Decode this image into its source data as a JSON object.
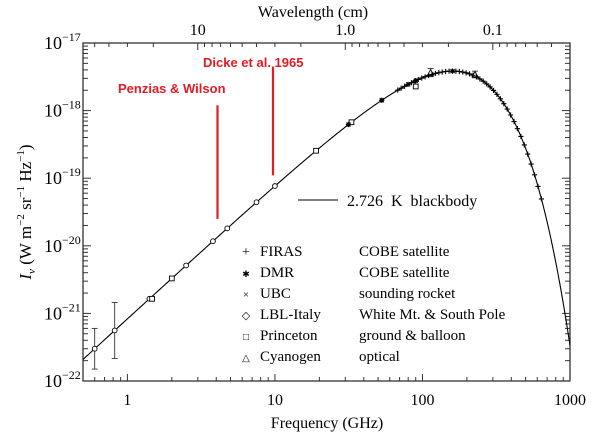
{
  "chart_data": {
    "type": "scatter",
    "title": "",
    "xlabel": "Frequency (GHz)",
    "ylabel_main": "I",
    "ylabel_sub": "ν",
    "ylabel_units": "(W m",
    "ylabel_full": "I_ν (W m^-2 sr^-1 Hz^-1)",
    "top_axis_label": "Wavelength (cm)",
    "xscale": "log",
    "yscale": "log",
    "xlim": [
      0.5,
      1000
    ],
    "ylim": [
      1e-22,
      1e-17
    ],
    "x_ticks": [
      {
        "value": 1,
        "label": "1"
      },
      {
        "value": 10,
        "label": "10"
      },
      {
        "value": 100,
        "label": "100"
      },
      {
        "value": 1000,
        "label": "1000"
      }
    ],
    "y_ticks": [
      {
        "value": 1e-17,
        "base": "10",
        "exp": "−17"
      },
      {
        "value": 1e-18,
        "base": "10",
        "exp": "−18"
      },
      {
        "value": 1e-19,
        "base": "10",
        "exp": "−19"
      },
      {
        "value": 1e-20,
        "base": "10",
        "exp": "−20"
      },
      {
        "value": 1e-21,
        "base": "10",
        "exp": "−21"
      },
      {
        "value": 1e-22,
        "base": "10",
        "exp": "−22"
      }
    ],
    "top_ticks": [
      {
        "wavelength_cm": 10,
        "label": "10"
      },
      {
        "wavelength_cm": 1.0,
        "label": "1.0"
      },
      {
        "wavelength_cm": 0.1,
        "label": "0.1"
      }
    ],
    "model_curve": {
      "name": "2.726 K blackbody",
      "temperature_K": 2.726,
      "legend_label": "2.726  K  blackbody"
    },
    "annotations": [
      {
        "text": "Penzias & Wilson",
        "frequency_GHz": 4.08,
        "y_top": 1.2e-18,
        "y_bottom": 2.5e-20,
        "color": "#e31b23"
      },
      {
        "text": "Dicke et al. 1965",
        "frequency_GHz": 9.7,
        "y_top": 4.5e-18,
        "y_bottom": 1.1e-19,
        "color": "#e31b23"
      }
    ],
    "legend": [
      {
        "marker": "plus",
        "symbol": "+",
        "instrument": "FIRAS",
        "description": "COBE satellite"
      },
      {
        "marker": "asterisk",
        "symbol": "✱",
        "instrument": "DMR",
        "description": "COBE satellite"
      },
      {
        "marker": "cross",
        "symbol": "×",
        "instrument": "UBC",
        "description": "sounding rocket"
      },
      {
        "marker": "diamond",
        "symbol": "◇",
        "instrument": "LBL-Italy",
        "description": "White Mt. & South Pole"
      },
      {
        "marker": "square",
        "symbol": "□",
        "instrument": "Princeton",
        "description": "ground & balloon"
      },
      {
        "marker": "triangle",
        "symbol": "△",
        "instrument": "Cyanogen",
        "description": "optical"
      }
    ],
    "series": [
      {
        "name": "LBL-Italy",
        "marker": "diamond",
        "points": [
          {
            "x": 0.6,
            "y_ratio": 1.0,
            "err": 2.0
          },
          {
            "x": 0.82,
            "y_ratio": 1.0,
            "err": 2.6
          },
          {
            "x": 1.41,
            "y_ratio": 1.0
          },
          {
            "x": 2.5,
            "y_ratio": 1.0
          },
          {
            "x": 3.8,
            "y_ratio": 1.0
          },
          {
            "x": 4.75,
            "y_ratio": 1.0
          },
          {
            "x": 7.5,
            "y_ratio": 1.0
          },
          {
            "x": 10.0,
            "y_ratio": 1.0
          }
        ]
      },
      {
        "name": "Princeton",
        "marker": "square",
        "points": [
          {
            "x": 1.47,
            "y_ratio": 0.92
          },
          {
            "x": 2.0,
            "y_ratio": 1.0
          },
          {
            "x": 19.0,
            "y_ratio": 1.0
          },
          {
            "x": 33.0,
            "y_ratio": 1.0
          },
          {
            "x": 90.0,
            "y_ratio": 0.82
          }
        ]
      },
      {
        "name": "DMR",
        "marker": "asterisk",
        "points": [
          {
            "x": 31.5,
            "y_ratio": 1.0
          },
          {
            "x": 53.0,
            "y_ratio": 1.0
          },
          {
            "x": 90.0,
            "y_ratio": 1.0
          }
        ]
      },
      {
        "name": "UBC",
        "marker": "cross",
        "points": [
          {
            "x": 80.0,
            "y_ratio": 1.0
          },
          {
            "x": 115.0,
            "y_ratio": 1.0
          },
          {
            "x": 160.0,
            "y_ratio": 1.0
          }
        ]
      },
      {
        "name": "Cyanogen",
        "marker": "triangle",
        "points": [
          {
            "x": 113.6,
            "y_ratio": 1.08,
            "err": 1.15
          },
          {
            "x": 227.0,
            "y_ratio": 1.06,
            "err": 1.12
          }
        ]
      },
      {
        "name": "FIRAS",
        "marker": "plus",
        "range_GHz": [
          68,
          640
        ],
        "count": 43
      }
    ]
  }
}
